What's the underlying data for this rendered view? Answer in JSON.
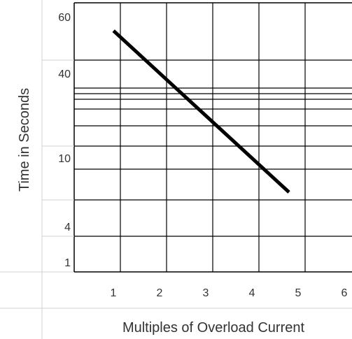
{
  "chart_data": {
    "type": "line",
    "title": "",
    "xlabel": "Multiples of Overload Current",
    "ylabel": "Time in Seconds",
    "x_tick_labels": [
      "1",
      "2",
      "3",
      "4",
      "5",
      "6"
    ],
    "y_tick_labels": [
      "60",
      "40",
      "10",
      "4",
      "1"
    ],
    "grid": true,
    "legend": "none",
    "line_color": "#000000",
    "grid_color": "#000000",
    "series": [
      {
        "x": [
          1.7,
          5.5
        ],
        "y": [
          55,
          7
        ]
      }
    ]
  }
}
